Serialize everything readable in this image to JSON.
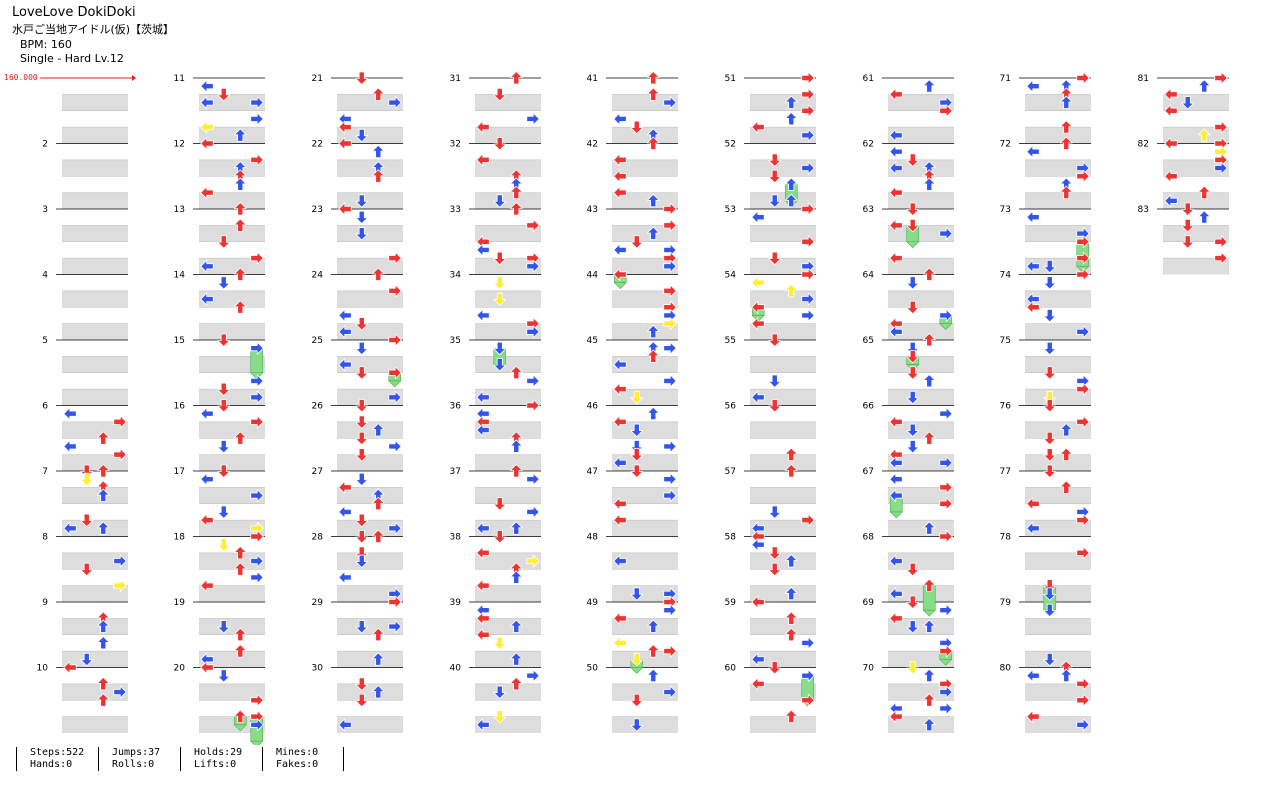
{
  "song": {
    "title": "LoveLove DokiDoki",
    "subtitle": "水戸ご当地アイドル(仮)【茨城】",
    "bpm_label": "BPM: 160",
    "difficulty_label": "Single - Hard  Lv.12",
    "bpm_marker": "160.000"
  },
  "chart": {
    "measure_numbers": [
      "2",
      "3",
      "4",
      "5",
      "6",
      "7",
      "8",
      "9",
      "10",
      "11",
      "12",
      "13",
      "14",
      "15",
      "16",
      "17",
      "18",
      "19",
      "20",
      "21",
      "22",
      "23",
      "24",
      "25",
      "26",
      "27",
      "28",
      "29",
      "30",
      "31",
      "32",
      "33",
      "34",
      "35",
      "36",
      "37",
      "38",
      "39",
      "40",
      "41",
      "42",
      "43",
      "44",
      "45",
      "46",
      "47",
      "48",
      "49",
      "50",
      "51",
      "52",
      "53",
      "54",
      "55",
      "56",
      "57",
      "58",
      "59",
      "60",
      "61",
      "62",
      "63",
      "64",
      "65",
      "66",
      "67",
      "68",
      "69",
      "70",
      "71",
      "72",
      "73",
      "74",
      "75",
      "76",
      "77",
      "78",
      "79",
      "80",
      "81",
      "82",
      "83"
    ],
    "colors": {
      "quarter_note": "#ee3333",
      "eighth_note": "#3355ee",
      "sixteenth_note": "#ffee33",
      "hold_body": "#88dd88",
      "lane_shade": "#dddddd",
      "bpm_change": "#e02020"
    }
  },
  "stats": {
    "steps": "Steps:522",
    "hands": "Hands:0",
    "jumps": "Jumps:37",
    "rolls": "Rolls:0",
    "holds": "Holds:29",
    "lifts": "Lifts:0",
    "mines": "Mines:0",
    "fakes": "Fakes:0"
  }
}
